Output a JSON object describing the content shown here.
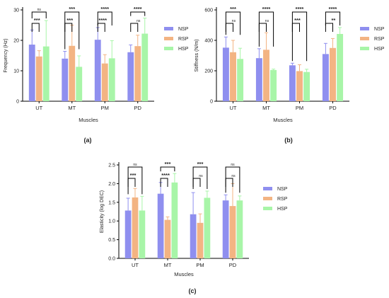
{
  "chart_data": [
    {
      "type": "bar",
      "panel": "(a)",
      "xlabel": "Muscles",
      "ylabel": "Frequency (Hz)",
      "ylim": [
        0,
        30
      ],
      "yticks": [
        "0",
        "10",
        "20",
        "30"
      ],
      "categories": [
        "UT",
        "MT",
        "PM",
        "PD"
      ],
      "series": [
        {
          "name": "NSP",
          "color": "#8f8fef",
          "values": [
            18.6,
            14.0,
            20.2,
            16.1
          ],
          "errors": [
            4.8,
            2.4,
            4.0,
            2.4
          ]
        },
        {
          "name": "RSP",
          "color": "#f3b483",
          "values": [
            14.7,
            18.2,
            12.4,
            18.1
          ],
          "errors": [
            1.9,
            6.8,
            2.9,
            3.6
          ]
        },
        {
          "name": "HSP",
          "color": "#a8f5a8",
          "values": [
            18.0,
            11.3,
            14.1,
            22.2
          ],
          "errors": [
            8.5,
            3.6,
            5.8,
            5.1
          ]
        }
      ],
      "legend_position": "right",
      "annotations": {
        "long": [
          {
            "label": "ns",
            "color": "#e0a030"
          },
          {
            "label": "***",
            "color": "#d4a020"
          },
          {
            "label": "****",
            "color": "#d4a020"
          },
          {
            "label": "****",
            "color": "#d4a020"
          }
        ],
        "short": [
          {
            "label": "***",
            "color": "#e02020"
          },
          {
            "label": "***",
            "color": "#e02020"
          },
          {
            "label": "****",
            "color": "#e02020"
          },
          {
            "label": "ns",
            "color": "#e03030"
          }
        ]
      }
    },
    {
      "type": "bar",
      "panel": "(b)",
      "xlabel": "Muscles",
      "ylabel": "Stiffness (N/m)",
      "ylim": [
        0,
        600
      ],
      "yticks": [
        "0",
        "200",
        "400",
        "600"
      ],
      "categories": [
        "UT",
        "MT",
        "PM",
        "PD"
      ],
      "series": [
        {
          "name": "NSP",
          "color": "#8f8fef",
          "values": [
            352,
            283,
            236,
            310
          ],
          "errors": [
            70,
            62,
            14,
            70
          ]
        },
        {
          "name": "RSP",
          "color": "#f3b483",
          "values": [
            322,
            338,
            198,
            350
          ],
          "errors": [
            78,
            112,
            42,
            62
          ]
        },
        {
          "name": "HSP",
          "color": "#a8f5a8",
          "values": [
            278,
            205,
            192,
            442
          ],
          "errors": [
            70,
            6,
            18,
            42
          ]
        }
      ],
      "legend_position": "right",
      "annotations": {
        "long": [
          {
            "label": "***",
            "color": "#d4a020"
          },
          {
            "label": "****",
            "color": "#d4a020"
          },
          {
            "label": "****",
            "color": "#d4a020"
          },
          {
            "label": "****",
            "color": "#d4a020"
          }
        ],
        "short": [
          {
            "label": "ns",
            "color": "#e03030"
          },
          {
            "label": "ns",
            "color": "#e03030"
          },
          {
            "label": "***",
            "color": "#e02020"
          },
          {
            "label": "**",
            "color": "#e02020"
          }
        ]
      }
    },
    {
      "type": "bar",
      "panel": "(c)",
      "xlabel": "Muscles",
      "ylabel": "Elasticity (log DEC)",
      "ylim": [
        0,
        2.5
      ],
      "yticks": [
        "0.0",
        "0.5",
        "1.0",
        "1.5",
        "2.0",
        "2.5"
      ],
      "categories": [
        "UT",
        "MT",
        "PM",
        "PD"
      ],
      "series": [
        {
          "name": "NSP",
          "color": "#8f8fef",
          "values": [
            1.28,
            1.73,
            1.18,
            1.55
          ],
          "errors": [
            0.33,
            0.3,
            0.58,
            0.15
          ]
        },
        {
          "name": "RSP",
          "color": "#f3b483",
          "values": [
            1.63,
            1.03,
            0.95,
            1.4
          ],
          "errors": [
            0.24,
            0.08,
            0.24,
            0.6
          ]
        },
        {
          "name": "HSP",
          "color": "#a8f5a8",
          "values": [
            1.28,
            2.03,
            1.62,
            1.55
          ],
          "errors": [
            0.38,
            0.24,
            0.18,
            0.12
          ]
        }
      ],
      "legend_position": "right",
      "annotations": {
        "long": [
          {
            "label": "ns",
            "color": "#e0a030"
          },
          {
            "label": "***",
            "color": "#d4a020"
          },
          {
            "label": "***",
            "color": "#d4a020"
          },
          {
            "label": "ns",
            "color": "#e0a030"
          }
        ],
        "short": [
          {
            "label": "***",
            "color": "#e02020"
          },
          {
            "label": "****",
            "color": "#e02020"
          },
          {
            "label": "ns",
            "color": "#e03030"
          },
          {
            "label": "ns",
            "color": "#e03030"
          }
        ]
      }
    }
  ]
}
